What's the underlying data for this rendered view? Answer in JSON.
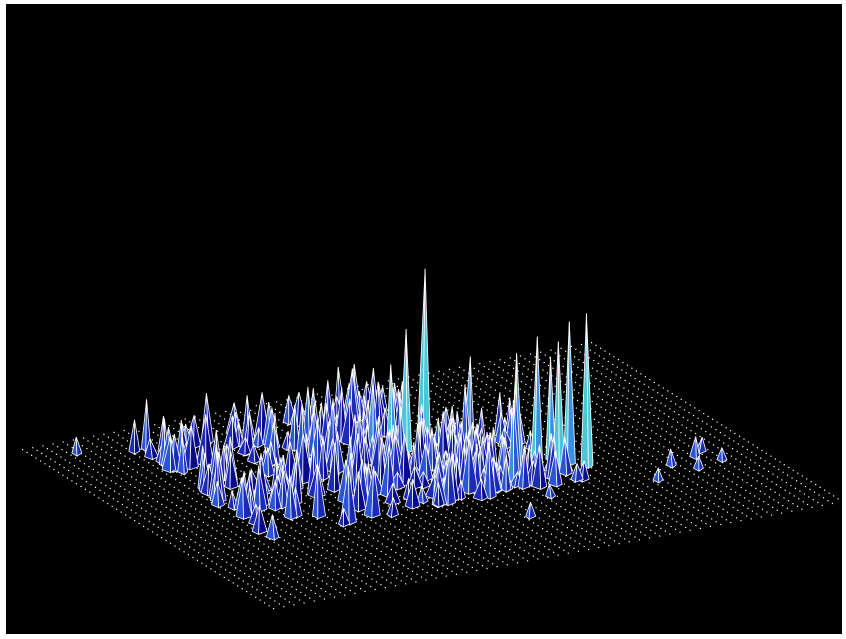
{
  "scene": {
    "description_type": "3d-surface-render",
    "background_color": "#000000",
    "frame_color": "#ffffff",
    "grid_point_color": "#ffffff",
    "edge_color": "#ffffff",
    "surface_colors": [
      "#0a0a8c",
      "#1c2ab8",
      "#2a55d6",
      "#3b8fe0",
      "#49c6d8"
    ]
  }
}
